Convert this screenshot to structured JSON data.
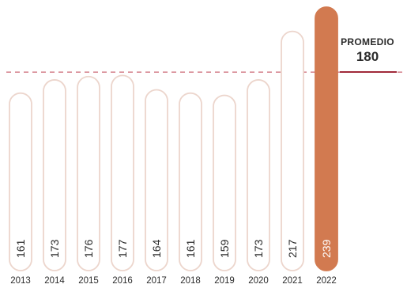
{
  "chart_data": {
    "type": "bar",
    "categories": [
      "2013",
      "2014",
      "2015",
      "2016",
      "2017",
      "2018",
      "2019",
      "2020",
      "2021",
      "2022"
    ],
    "values": [
      161,
      173,
      176,
      177,
      164,
      161,
      159,
      173,
      217,
      239
    ],
    "average": {
      "label": "PROMEDIO",
      "value": 180
    },
    "ylim": [
      0,
      239
    ],
    "grid": false,
    "highlight_index": 9,
    "colors": {
      "bar_fill": "#ffffff",
      "bar_outline": "#ecd5cc",
      "highlight_fill": "#d27a50",
      "value_text": "#2b2b2b",
      "highlight_text": "#ffffff",
      "avg_line": "#d88a94",
      "avg_underline": "#a02a3a",
      "axis_text": "#2b2b2b"
    }
  }
}
